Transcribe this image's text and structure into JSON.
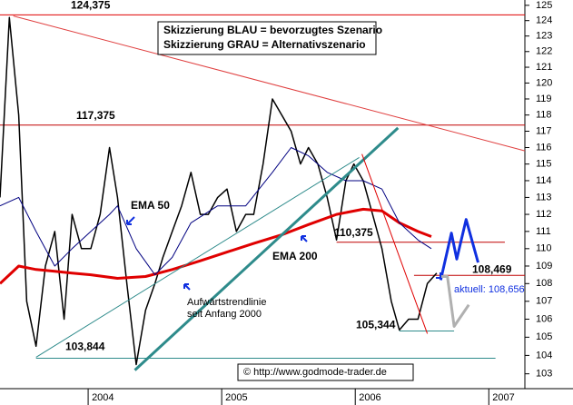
{
  "chart_data": {
    "type": "line",
    "log_scale": true,
    "legend_box": [
      "Skizzierung BLAU = bevorzugtes Szenario",
      "Skizzierung GRAU = Alternativszenario"
    ],
    "annotations": {
      "ema50": "EMA 50",
      "ema200": "EMA 200",
      "trend1": "Aufwärtstrendlinie",
      "trend2": "seit Anfang 2000",
      "current": "aktuell: 108,656",
      "copyright": "© http://www.godmode-trader.de"
    },
    "xlim": [
      2003.34,
      2007.27
    ],
    "xticks": [
      2004,
      2005,
      2006,
      2007
    ],
    "ylim": [
      102.2,
      125.35
    ],
    "yticks": [
      103,
      104,
      105,
      106,
      107,
      108,
      109,
      110,
      111,
      112,
      113,
      114,
      115,
      116,
      117,
      118,
      119,
      120,
      121,
      122,
      123,
      124,
      125
    ],
    "series": [
      {
        "color": "#000000",
        "x": [
          2003.34,
          2003.41,
          2003.48,
          2003.54,
          2003.61,
          2003.68,
          2003.75,
          2003.82,
          2003.88,
          2003.95,
          2004.02,
          2004.09,
          2004.16,
          2004.22,
          2004.29,
          2004.36,
          2004.43,
          2004.5,
          2004.56,
          2004.63,
          2004.7,
          2004.77,
          2004.84,
          2004.9,
          2004.97,
          2005.04,
          2005.11,
          2005.18,
          2005.24,
          2005.31,
          2005.38,
          2005.45,
          2005.52,
          2005.59,
          2005.65,
          2005.72,
          2005.79,
          2005.86,
          2005.93,
          2005.99,
          2006.06,
          2006.13,
          2006.2,
          2006.27,
          2006.33,
          2006.4,
          2006.47,
          2006.54,
          2006.61
        ],
        "values": [
          113,
          124.2,
          118,
          107,
          104.5,
          109,
          111,
          106,
          112,
          110,
          110,
          112,
          116,
          113,
          108,
          103.5,
          106.5,
          108,
          109.5,
          111,
          112.5,
          114.5,
          112,
          112,
          113,
          113.5,
          111,
          112,
          112,
          115,
          119,
          118,
          117,
          115,
          116,
          115,
          113,
          110.5,
          114,
          115,
          114,
          112,
          110,
          107,
          105.4,
          106,
          106,
          108,
          108.6
        ]
      },
      {
        "color": "#e00000",
        "width": 3,
        "x": [
          2003.34,
          2003.48,
          2003.61,
          2003.75,
          2003.88,
          2004.02,
          2004.22,
          2004.43,
          2004.63,
          2004.84,
          2005.04,
          2005.24,
          2005.45,
          2005.65,
          2005.86,
          2006.06,
          2006.2,
          2006.33,
          2006.47,
          2006.57
        ],
        "values": [
          108,
          109,
          108.8,
          108.7,
          108.6,
          108.5,
          108.3,
          108.4,
          108.8,
          109.3,
          109.8,
          110.3,
          110.8,
          111.4,
          112,
          112.3,
          112.2,
          111.5,
          111,
          110.7
        ]
      },
      {
        "color": "#000080",
        "width": 1,
        "x": [
          2003.34,
          2003.48,
          2003.61,
          2003.75,
          2003.88,
          2004.02,
          2004.16,
          2004.22,
          2004.36,
          2004.5,
          2004.63,
          2004.77,
          2004.97,
          2005.18,
          2005.38,
          2005.52,
          2005.65,
          2005.79,
          2005.93,
          2006.06,
          2006.2,
          2006.33,
          2006.47,
          2006.57
        ],
        "values": [
          112.5,
          113,
          111,
          109,
          110,
          111,
          112,
          112.5,
          110,
          108.5,
          109.5,
          111.5,
          112.5,
          112.5,
          114.5,
          116,
          115.5,
          114.5,
          114,
          114,
          113.5,
          111.5,
          110.5,
          110
        ]
      },
      {
        "color": "#e04040",
        "width": 1,
        "x": [
          2003.44,
          2007.27
        ],
        "values": [
          124.3,
          115.8
        ]
      },
      {
        "color": "#2e8b8b",
        "width": 1,
        "x": [
          2003.61,
          2006.03
        ],
        "values": [
          103.9,
          115.4
        ]
      },
      {
        "color": "#2e8b8b",
        "width": 3,
        "x": [
          2004.35,
          2006.32
        ],
        "values": [
          103.2,
          117.2
        ]
      },
      {
        "color": "#e00000",
        "width": 1,
        "x": [
          2006.05,
          2006.54
        ],
        "values": [
          115.6,
          105.2
        ]
      },
      {
        "color": "#1030e0",
        "width": 3,
        "x": [
          2006.64,
          2006.72,
          2006.76,
          2006.83,
          2006.92
        ],
        "values": [
          108.2,
          110.9,
          109.4,
          111.7,
          109.2
        ]
      },
      {
        "color": "#b0b0b0",
        "width": 3,
        "x": [
          2006.63,
          2006.69,
          2006.74,
          2006.85
        ],
        "values": [
          108.4,
          108.4,
          105.6,
          106.8
        ]
      }
    ],
    "levels": [
      {
        "value": 124.375,
        "label": "124,375",
        "from": 2003.34,
        "to": 2007.27,
        "color": "#e00000"
      },
      {
        "value": 117.375,
        "label": "117,375",
        "from": 2003.34,
        "to": 2007.27,
        "color": "#c00000"
      },
      {
        "value": 110.375,
        "label": "110,375",
        "from": 2005.86,
        "to": 2007.12,
        "color": "#c00000"
      },
      {
        "value": 108.469,
        "label": "108,469",
        "from": 2006.44,
        "to": 2007.27,
        "color": "#c00000"
      },
      {
        "value": 105.344,
        "label": "105,344",
        "from": 2006.33,
        "to": 2006.74,
        "color": "#2e8b8b"
      },
      {
        "value": 103.844,
        "label": "103,844",
        "from": 2003.61,
        "to": 2007.05,
        "color": "#2e8b8b"
      }
    ]
  }
}
